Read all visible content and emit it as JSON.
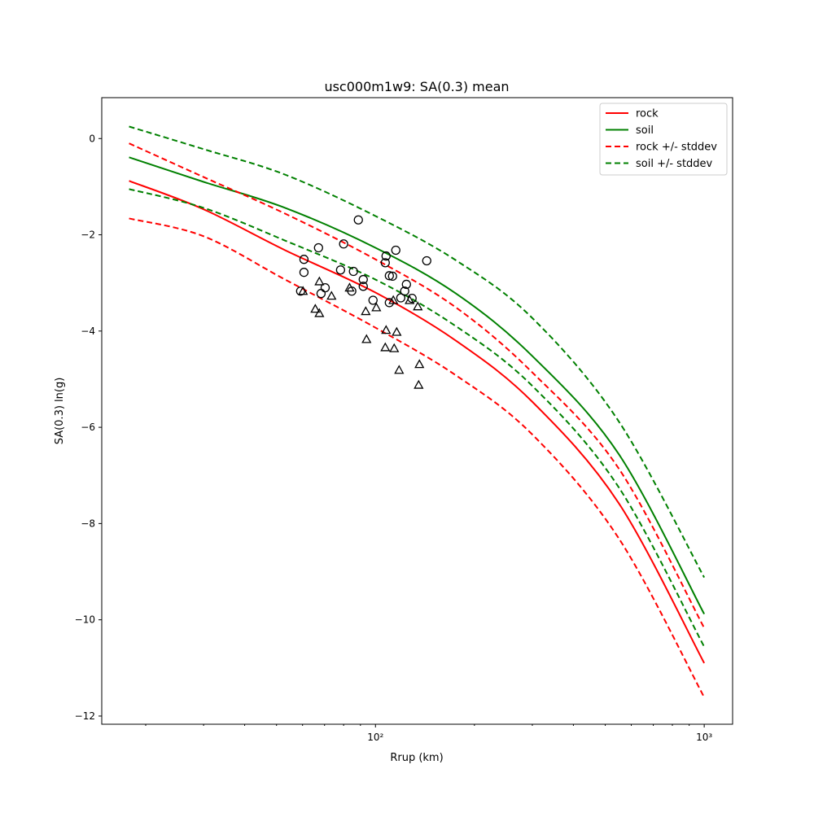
{
  "chart_data": {
    "type": "line",
    "title": "usc000m1w9: SA(0.3) mean",
    "xlabel": "Rrup (km)",
    "ylabel": "SA(0.3) ln(g)",
    "xscale": "log",
    "xlim": [
      14.7,
      1220
    ],
    "ylim": [
      -12.17,
      0.85
    ],
    "xticks": [
      {
        "value": 100,
        "label": "10²"
      },
      {
        "value": 1000,
        "label": "10³"
      }
    ],
    "yticks": [
      {
        "value": 0,
        "label": "0"
      },
      {
        "value": -2,
        "label": "−2"
      },
      {
        "value": -4,
        "label": "−4"
      },
      {
        "value": -6,
        "label": "−6"
      },
      {
        "value": -8,
        "label": "−8"
      },
      {
        "value": -10,
        "label": "−10"
      },
      {
        "value": -12,
        "label": "−12"
      }
    ],
    "grid": false,
    "legend_position": "top-right",
    "x": [
      17.8,
      30,
      53.1,
      100,
      175.7,
      300,
      550,
      1000
    ],
    "series": [
      {
        "name": "rock",
        "color": "#ff0000",
        "dashed": false,
        "values": [
          -0.88,
          -1.47,
          -2.32,
          -3.2,
          -4.2,
          -5.47,
          -7.58,
          -10.9
        ]
      },
      {
        "name": "soil",
        "color": "#008000",
        "dashed": false,
        "values": [
          -0.39,
          -0.9,
          -1.44,
          -2.27,
          -3.22,
          -4.52,
          -6.56,
          -9.88
        ]
      },
      {
        "name": "rock +/- stddev",
        "color": "#ff0000",
        "dashed": true,
        "values": [
          -0.1,
          -0.8,
          -1.56,
          -2.51,
          -3.51,
          -4.86,
          -6.86,
          -10.17
        ],
        "values_lower": [
          -1.66,
          -2.03,
          -2.93,
          -3.93,
          -4.92,
          -6.15,
          -8.31,
          -11.61
        ]
      },
      {
        "name": "soil +/- stddev",
        "color": "#008000",
        "dashed": true,
        "values": [
          0.25,
          -0.22,
          -0.75,
          -1.61,
          -2.53,
          -3.73,
          -5.88,
          -9.12
        ],
        "values_lower": [
          -1.05,
          -1.44,
          -2.12,
          -2.93,
          -3.9,
          -5.14,
          -7.25,
          -10.56
        ]
      }
    ],
    "observations": {
      "circles": [
        [
          88.7,
          -1.69
        ],
        [
          67.1,
          -2.27
        ],
        [
          80.0,
          -2.19
        ],
        [
          115.3,
          -2.32
        ],
        [
          107.7,
          -2.44
        ],
        [
          143.2,
          -2.54
        ],
        [
          107.1,
          -2.58
        ],
        [
          60.6,
          -2.51
        ],
        [
          60.6,
          -2.78
        ],
        [
          78.3,
          -2.73
        ],
        [
          85.7,
          -2.76
        ],
        [
          110.2,
          -2.85
        ],
        [
          112.7,
          -2.86
        ],
        [
          91.8,
          -2.93
        ],
        [
          70.3,
          -3.1
        ],
        [
          91.8,
          -3.07
        ],
        [
          84.7,
          -3.17
        ],
        [
          59.2,
          -3.17
        ],
        [
          68.3,
          -3.22
        ],
        [
          124.2,
          -3.03
        ],
        [
          122.7,
          -3.17
        ],
        [
          119.4,
          -3.31
        ],
        [
          98.3,
          -3.36
        ],
        [
          129.2,
          -3.32
        ],
        [
          110.2,
          -3.41
        ]
      ],
      "triangles": [
        [
          60.2,
          -3.17
        ],
        [
          67.5,
          -2.97
        ],
        [
          83.4,
          -3.1
        ],
        [
          65.6,
          -3.54
        ],
        [
          67.5,
          -3.63
        ],
        [
          73.5,
          -3.27
        ],
        [
          93.4,
          -3.59
        ],
        [
          100.6,
          -3.51
        ],
        [
          113.3,
          -3.36
        ],
        [
          127.0,
          -3.36
        ],
        [
          134.5,
          -3.49
        ],
        [
          93.9,
          -4.17
        ],
        [
          107.7,
          -3.98
        ],
        [
          116.0,
          -4.02
        ],
        [
          107.1,
          -4.34
        ],
        [
          114.0,
          -4.36
        ],
        [
          118.0,
          -4.81
        ],
        [
          136.0,
          -4.69
        ],
        [
          135.3,
          -5.12
        ]
      ]
    }
  }
}
